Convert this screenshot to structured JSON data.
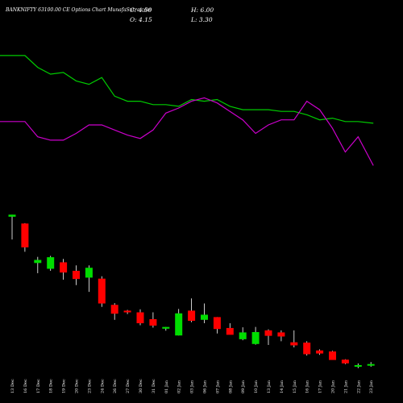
{
  "chart_data": {
    "type": "candlestick",
    "title": "BANKNIFTY 63100.00 CE Options  Chart MunafaSutra.com",
    "ohlc": {
      "close_label": "C: 4.50",
      "high_label": "H: 6.00",
      "open_label": "O: 4.15",
      "low_label": "L: 3.30"
    },
    "categories": [
      "13 Dec",
      "16 Dec",
      "17 Dec",
      "18 Dec",
      "19 Dec",
      "20 Dec",
      "23 Dec",
      "24 Dec",
      "26 Dec",
      "27 Dec",
      "30 Dec",
      "31 Dec",
      "01 Jan",
      "02 Jan",
      "03 Jan",
      "06 Jan",
      "07 Jan",
      "08 Jan",
      "09 Jan",
      "10 Jan",
      "13 Jan",
      "14 Jan",
      "15 Jan",
      "16 Jan",
      "17 Jan",
      "20 Jan",
      "21 Jan",
      "22 Jan",
      "23 Jan"
    ],
    "candle_ylim": [
      0,
      45
    ],
    "candles": [
      {
        "o": 42.9,
        "h": 43.5,
        "l": 36.2,
        "c": 43.5
      },
      {
        "o": 40.9,
        "h": 41.0,
        "l": 32.6,
        "c": 33.9
      },
      {
        "o": 29.3,
        "h": 31.1,
        "l": 26.3,
        "c": 30.2
      },
      {
        "o": 27.6,
        "h": 31.4,
        "l": 27.0,
        "c": 31.0
      },
      {
        "o": 29.5,
        "h": 30.5,
        "l": 24.4,
        "c": 26.5
      },
      {
        "o": 27.0,
        "h": 28.6,
        "l": 22.8,
        "c": 24.6
      },
      {
        "o": 25.0,
        "h": 28.6,
        "l": 20.8,
        "c": 27.9
      },
      {
        "o": 24.7,
        "h": 25.4,
        "l": 16.4,
        "c": 17.4
      },
      {
        "o": 17.0,
        "h": 17.5,
        "l": 12.6,
        "c": 14.4
      },
      {
        "o": 15.3,
        "h": 15.5,
        "l": 14.3,
        "c": 14.8
      },
      {
        "o": 14.8,
        "h": 15.7,
        "l": 11.0,
        "c": 11.6
      },
      {
        "o": 12.8,
        "h": 14.8,
        "l": 10.3,
        "c": 10.9
      },
      {
        "o": 10.0,
        "h": 10.5,
        "l": 9.4,
        "c": 10.5
      },
      {
        "o": 8.0,
        "h": 15.8,
        "l": 8.0,
        "c": 14.5
      },
      {
        "o": 15.3,
        "h": 18.9,
        "l": 11.9,
        "c": 12.3
      },
      {
        "o": 12.6,
        "h": 17.4,
        "l": 11.6,
        "c": 14.1
      },
      {
        "o": 13.4,
        "h": 13.4,
        "l": 8.6,
        "c": 9.9
      },
      {
        "o": 10.2,
        "h": 11.6,
        "l": 8.6,
        "c": 8.2
      },
      {
        "o": 6.9,
        "h": 10.4,
        "l": 6.6,
        "c": 8.9
      },
      {
        "o": 5.5,
        "h": 10.5,
        "l": 5.3,
        "c": 9.0
      },
      {
        "o": 9.5,
        "h": 9.8,
        "l": 5.2,
        "c": 7.9
      },
      {
        "o": 8.9,
        "h": 9.5,
        "l": 6.3,
        "c": 7.7
      },
      {
        "o": 6.0,
        "h": 9.5,
        "l": 4.5,
        "c": 5.1
      },
      {
        "o": 5.9,
        "h": 6.3,
        "l": 2.1,
        "c": 2.5
      },
      {
        "o": 3.6,
        "h": 3.9,
        "l": 2.3,
        "c": 2.7
      },
      {
        "o": 3.3,
        "h": 3.5,
        "l": 0.9,
        "c": 0.8
      },
      {
        "o": 0.9,
        "h": 1.0,
        "l": -0.4,
        "c": -0.2
      },
      {
        "o": -1.2,
        "h": -0.2,
        "l": -1.6,
        "c": -0.7
      },
      {
        "o": -0.7,
        "h": 0.2,
        "l": -1.2,
        "c": -0.4
      }
    ],
    "line_ylim": [
      0,
      100
    ],
    "series": [
      {
        "color": "#00cc00",
        "values": [
          91,
          91,
          84,
          80,
          81,
          76,
          74,
          78,
          67,
          64,
          64,
          62,
          62,
          61,
          65,
          64,
          65,
          61,
          59,
          59,
          59,
          58,
          58,
          56,
          53,
          54,
          52,
          52,
          51
        ]
      },
      {
        "color": "#cc00cc",
        "values": [
          52,
          52,
          43,
          41,
          41,
          45,
          50,
          50,
          47,
          44,
          42,
          47,
          57,
          60,
          64,
          66,
          63,
          58,
          53,
          45,
          50,
          53,
          53,
          64,
          59,
          48,
          34,
          43,
          26
        ]
      }
    ],
    "colors": {
      "up": "#00dd00",
      "down": "#ff0000",
      "background": "#000000",
      "text": "#ffffff"
    },
    "grid": false
  }
}
